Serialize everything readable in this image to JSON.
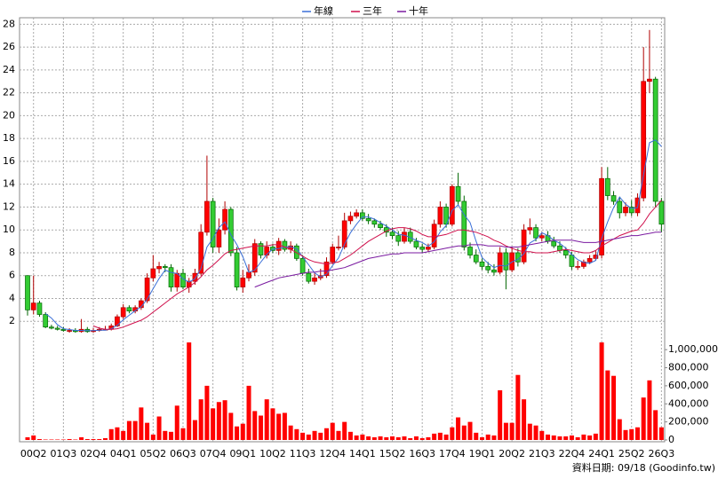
{
  "chart_data": {
    "type": "candlestick",
    "categories": [
      null,
      "00Q2",
      null,
      null,
      null,
      null,
      "01Q3",
      null,
      null,
      null,
      null,
      "02Q4",
      null,
      null,
      null,
      null,
      "04Q1",
      null,
      null,
      null,
      null,
      "05Q2",
      null,
      null,
      null,
      null,
      "06Q3",
      null,
      null,
      null,
      null,
      "07Q4",
      null,
      null,
      null,
      null,
      "09Q1",
      null,
      null,
      null,
      null,
      "10Q2",
      null,
      null,
      null,
      null,
      "11Q3",
      null,
      null,
      null,
      null,
      "12Q4",
      null,
      null,
      null,
      null,
      "14Q1",
      null,
      null,
      null,
      null,
      "15Q2",
      null,
      null,
      null,
      null,
      "16Q3",
      null,
      null,
      null,
      null,
      "17Q4",
      null,
      null,
      null,
      null,
      "19Q1",
      null,
      null,
      null,
      null,
      "20Q2",
      null,
      null,
      null,
      null,
      "21Q3",
      null,
      null,
      null,
      null,
      "22Q4",
      null,
      null,
      null,
      null,
      "24Q1",
      null,
      null,
      null,
      null,
      "25Q2",
      null,
      null,
      null,
      null,
      "26Q3"
    ],
    "open": [
      6.0,
      3.0,
      3.6,
      2.6,
      1.5,
      1.4,
      1.3,
      1.2,
      1.2,
      1.1,
      1.3,
      1.1,
      1.2,
      1.3,
      1.3,
      1.6,
      2.4,
      3.2,
      2.9,
      3.2,
      3.8,
      5.8,
      6.6,
      6.8,
      6.7,
      5.0,
      6.2,
      5.0,
      5.5,
      6.2,
      9.8,
      12.5,
      8.5,
      10.0,
      11.8,
      8.0,
      5.0,
      5.8,
      6.3,
      8.8,
      7.8,
      8.5,
      8.2,
      9.0,
      8.3,
      8.6,
      7.5,
      6.2,
      5.5,
      5.8,
      6.0,
      7.2,
      8.5,
      8.5,
      10.8,
      11.2,
      11.5,
      11.0,
      10.8,
      10.5,
      10.2,
      9.8,
      9.5,
      9.0,
      9.8,
      9.0,
      8.5,
      8.3,
      8.5,
      10.5,
      12.0,
      10.5,
      13.8,
      12.5,
      8.5,
      7.8,
      7.2,
      6.8,
      6.5,
      6.3,
      8.0,
      6.5,
      8.0,
      7.2,
      10.0,
      10.2,
      9.3,
      9.5,
      9.0,
      8.6,
      8.2,
      7.8,
      6.8,
      6.8,
      7.2,
      7.5,
      7.8,
      14.5,
      13.0,
      12.5,
      11.5,
      12.0,
      11.5,
      12.8,
      23.0,
      23.2,
      12.5
    ],
    "high": [
      6.0,
      6.0,
      3.8,
      2.8,
      1.7,
      1.6,
      1.5,
      1.4,
      1.4,
      2.2,
      1.5,
      1.4,
      1.5,
      1.6,
      1.8,
      2.6,
      3.5,
      3.4,
      3.4,
      4.0,
      6.2,
      7.8,
      7.2,
      7.0,
      7.0,
      6.5,
      6.6,
      5.8,
      6.6,
      10.5,
      16.5,
      12.8,
      11.0,
      12.5,
      12.0,
      8.5,
      6.5,
      7.0,
      9.2,
      9.0,
      9.0,
      8.8,
      9.3,
      9.2,
      9.0,
      8.8,
      7.8,
      6.6,
      6.2,
      6.6,
      7.6,
      8.8,
      9.5,
      11.5,
      11.6,
      11.8,
      11.8,
      11.4,
      11.0,
      10.8,
      10.5,
      10.2,
      9.9,
      10.2,
      10.2,
      9.3,
      8.8,
      8.8,
      10.9,
      12.5,
      12.3,
      14.0,
      15.0,
      13.0,
      8.9,
      8.3,
      7.5,
      7.2,
      7.0,
      8.5,
      8.4,
      8.5,
      8.4,
      10.5,
      11.0,
      10.5,
      9.8,
      9.9,
      9.4,
      9.0,
      8.5,
      8.1,
      7.3,
      7.4,
      7.8,
      8.2,
      15.5,
      15.5,
      13.4,
      12.9,
      12.4,
      12.6,
      13.2,
      26.0,
      27.5,
      23.4,
      12.8
    ],
    "low": [
      2.5,
      2.6,
      2.4,
      1.4,
      1.3,
      1.2,
      1.1,
      1.0,
      1.0,
      1.0,
      1.0,
      1.0,
      1.1,
      1.2,
      1.2,
      1.5,
      2.2,
      2.7,
      2.7,
      3.0,
      3.6,
      5.5,
      6.2,
      6.3,
      4.6,
      4.6,
      4.8,
      4.5,
      5.2,
      6.0,
      9.5,
      8.0,
      8.0,
      9.6,
      7.7,
      4.7,
      4.5,
      5.5,
      6.0,
      7.5,
      7.5,
      8.0,
      7.8,
      8.1,
      8.0,
      7.3,
      6.0,
      5.3,
      5.2,
      5.6,
      5.8,
      7.0,
      8.2,
      8.3,
      10.5,
      11.0,
      10.8,
      10.5,
      10.2,
      10.0,
      9.4,
      9.2,
      8.6,
      8.8,
      8.8,
      8.3,
      8.0,
      8.1,
      8.3,
      10.2,
      10.2,
      10.3,
      12.2,
      8.2,
      7.5,
      7.0,
      6.5,
      6.2,
      6.0,
      6.1,
      4.8,
      6.3,
      6.8,
      7.0,
      9.6,
      9.0,
      9.0,
      8.8,
      8.4,
      8.0,
      7.5,
      6.5,
      6.5,
      6.6,
      7.0,
      7.3,
      7.5,
      12.6,
      12.2,
      11.0,
      11.2,
      11.2,
      11.2,
      12.5,
      22.0,
      12.0,
      9.8
    ],
    "close": [
      3.0,
      3.6,
      2.6,
      1.5,
      1.4,
      1.3,
      1.2,
      1.2,
      1.1,
      1.3,
      1.1,
      1.2,
      1.3,
      1.3,
      1.6,
      2.4,
      3.2,
      2.9,
      3.2,
      3.8,
      5.8,
      6.6,
      6.8,
      6.7,
      5.0,
      6.2,
      5.0,
      5.5,
      6.2,
      9.8,
      12.5,
      8.5,
      10.0,
      11.8,
      8.0,
      5.0,
      5.8,
      6.3,
      8.8,
      7.8,
      8.5,
      8.2,
      9.0,
      8.3,
      8.6,
      7.5,
      6.2,
      5.5,
      5.8,
      6.0,
      7.2,
      8.5,
      8.5,
      10.8,
      11.2,
      11.5,
      11.0,
      10.8,
      10.5,
      10.2,
      9.8,
      9.5,
      9.0,
      9.8,
      9.0,
      8.5,
      8.3,
      8.5,
      10.5,
      12.0,
      10.5,
      13.8,
      12.5,
      8.5,
      7.8,
      7.2,
      6.8,
      6.5,
      6.3,
      8.0,
      6.5,
      8.0,
      7.2,
      10.0,
      10.2,
      9.3,
      9.5,
      9.0,
      8.6,
      8.2,
      7.8,
      6.8,
      6.8,
      7.2,
      7.5,
      7.8,
      14.5,
      13.0,
      12.5,
      11.5,
      12.0,
      11.5,
      12.8,
      23.0,
      23.2,
      12.5,
      10.5
    ],
    "up_color": "#ff0000",
    "down_color": "#33cc33",
    "volume": [
      30000,
      50000,
      10000,
      5000,
      5000,
      5000,
      5000,
      10000,
      5000,
      30000,
      10000,
      10000,
      10000,
      20000,
      120000,
      140000,
      100000,
      210000,
      210000,
      360000,
      190000,
      60000,
      260000,
      100000,
      90000,
      380000,
      130000,
      1080000,
      220000,
      450000,
      600000,
      350000,
      420000,
      440000,
      300000,
      150000,
      180000,
      600000,
      320000,
      270000,
      450000,
      350000,
      290000,
      300000,
      160000,
      120000,
      80000,
      60000,
      100000,
      80000,
      130000,
      190000,
      100000,
      200000,
      90000,
      50000,
      60000,
      40000,
      30000,
      40000,
      30000,
      40000,
      30000,
      40000,
      20000,
      40000,
      20000,
      30000,
      70000,
      80000,
      60000,
      140000,
      250000,
      160000,
      200000,
      80000,
      30000,
      60000,
      50000,
      550000,
      190000,
      190000,
      720000,
      450000,
      180000,
      160000,
      100000,
      60000,
      50000,
      40000,
      40000,
      50000,
      30000,
      60000,
      50000,
      70000,
      1080000,
      770000,
      710000,
      230000,
      110000,
      120000,
      140000,
      470000,
      660000,
      330000,
      140000
    ],
    "volume_color": "#ff0000",
    "series": [
      {
        "name": "年線",
        "color": "#3a6fd8",
        "values": [
          null,
          null,
          null,
          2.68,
          2.28,
          1.7,
          1.35,
          1.28,
          1.2,
          1.2,
          1.18,
          1.18,
          1.23,
          1.23,
          1.35,
          1.65,
          2.13,
          2.53,
          2.93,
          3.28,
          3.93,
          4.85,
          5.75,
          6.48,
          6.28,
          6.18,
          5.73,
          5.43,
          5.73,
          6.63,
          8.5,
          9.25,
          10.2,
          10.7,
          9.58,
          8.7,
          7.65,
          6.28,
          6.48,
          7.18,
          7.85,
          8.33,
          8.38,
          8.5,
          8.53,
          8.35,
          7.65,
          6.95,
          6.25,
          5.88,
          6.13,
          6.88,
          7.55,
          8.75,
          9.75,
          10.5,
          11.13,
          11.13,
          10.95,
          10.63,
          10.33,
          10.0,
          9.63,
          9.53,
          9.33,
          9.08,
          8.9,
          8.58,
          8.95,
          9.83,
          10.38,
          11.7,
          12.2,
          11.33,
          10.65,
          9.0,
          7.58,
          7.08,
          6.7,
          6.9,
          6.83,
          7.2,
          7.43,
          7.93,
          8.85,
          9.18,
          9.75,
          9.5,
          9.1,
          8.83,
          8.4,
          7.85,
          7.4,
          7.15,
          7.08,
          7.33,
          9.25,
          10.7,
          11.95,
          12.88,
          12.25,
          11.88,
          11.95,
          14.83,
          17.63,
          17.88,
          17.3
        ]
      },
      {
        "name": "三年",
        "color": "#d0104c",
        "values": [
          null,
          null,
          null,
          null,
          null,
          null,
          null,
          null,
          null,
          null,
          null,
          1.6,
          1.4,
          1.3,
          1.3,
          1.35,
          1.5,
          1.7,
          1.9,
          2.1,
          2.4,
          2.8,
          3.2,
          3.6,
          4.0,
          4.4,
          4.7,
          5.0,
          5.4,
          5.9,
          6.5,
          6.9,
          7.4,
          7.9,
          8.2,
          8.3,
          8.4,
          8.5,
          8.6,
          8.6,
          8.6,
          8.7,
          8.7,
          8.5,
          8.3,
          8.0,
          7.7,
          7.4,
          7.2,
          7.1,
          7.0,
          7.1,
          7.2,
          7.5,
          7.8,
          8.2,
          8.6,
          9.0,
          9.3,
          9.6,
          9.9,
          10.1,
          10.2,
          10.2,
          10.1,
          9.9,
          9.6,
          9.4,
          9.4,
          9.5,
          9.6,
          9.8,
          10.0,
          10.0,
          9.9,
          9.8,
          9.6,
          9.4,
          9.1,
          8.9,
          8.6,
          8.4,
          8.2,
          8.1,
          8.1,
          8.0,
          8.0,
          8.0,
          8.1,
          8.2,
          8.3,
          8.2,
          8.1,
          8.0,
          8.0,
          8.2,
          8.6,
          8.9,
          9.2,
          9.5,
          9.7,
          9.9,
          10.0,
          10.6,
          11.4,
          12.0,
          12.6
        ]
      },
      {
        "name": "十年",
        "color": "#7a1aa0",
        "values": [
          null,
          null,
          null,
          null,
          null,
          null,
          null,
          null,
          null,
          null,
          null,
          null,
          null,
          null,
          null,
          null,
          null,
          null,
          null,
          null,
          null,
          null,
          null,
          null,
          null,
          null,
          null,
          null,
          null,
          null,
          null,
          null,
          null,
          null,
          null,
          null,
          null,
          null,
          5.0,
          5.2,
          5.4,
          5.6,
          5.8,
          5.9,
          6.0,
          6.1,
          6.2,
          6.3,
          6.3,
          6.4,
          6.4,
          6.5,
          6.6,
          6.7,
          6.9,
          7.1,
          7.3,
          7.5,
          7.6,
          7.7,
          7.8,
          7.9,
          7.9,
          8.0,
          8.0,
          8.0,
          8.0,
          8.1,
          8.2,
          8.3,
          8.4,
          8.5,
          8.6,
          8.6,
          8.7,
          8.7,
          8.7,
          8.6,
          8.6,
          8.6,
          8.5,
          8.5,
          8.5,
          8.6,
          8.7,
          8.8,
          8.9,
          9.0,
          9.1,
          9.1,
          9.1,
          9.1,
          9.0,
          8.9,
          8.9,
          8.9,
          9.0,
          9.1,
          9.2,
          9.3,
          9.4,
          9.5,
          9.5,
          9.6,
          9.7,
          9.8,
          9.8
        ]
      }
    ],
    "ylim": [
      0,
      28.5
    ],
    "yticks": [
      2,
      4,
      6,
      8,
      10,
      12,
      14,
      16,
      18,
      20,
      22,
      24,
      26,
      28
    ],
    "y2lim": [
      0,
      1100000
    ],
    "y2ticks": [
      0,
      {
        "value": 200000,
        "label": "200,000"
      },
      {
        "value": 400000,
        "label": "400,000"
      },
      {
        "value": 600000,
        "label": "600,000"
      },
      {
        "value": 800000,
        "label": "800,000"
      },
      {
        "value": 1000000,
        "label": "1,000,000"
      }
    ],
    "grid": true,
    "footnote": "資料日期: 09/18 (Goodinfo.tw)"
  }
}
